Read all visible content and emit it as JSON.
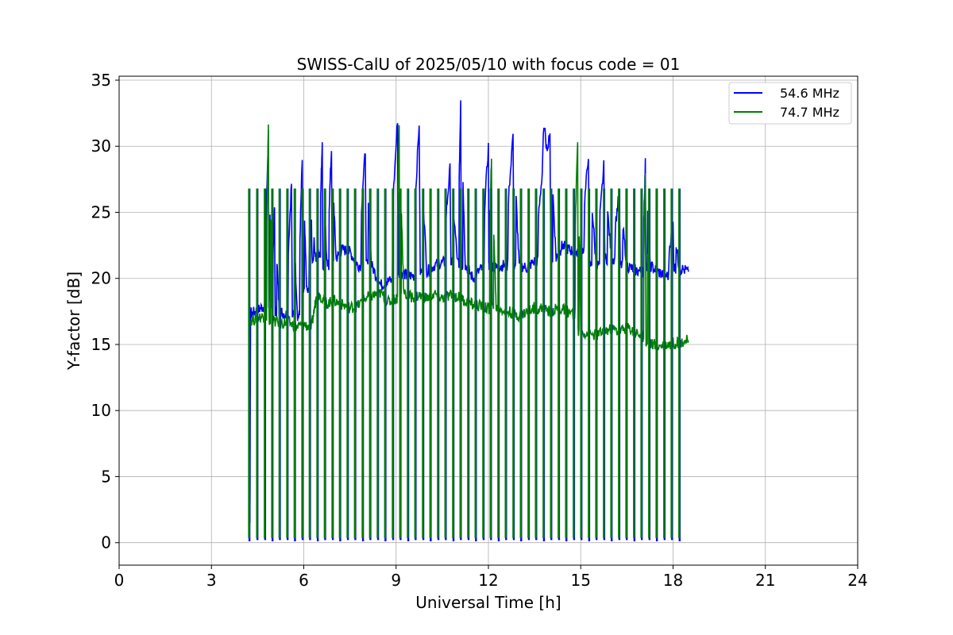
{
  "chart_data": {
    "type": "line",
    "title": "SWISS-CalU of 2025/05/10 with focus code = 01",
    "xlabel": "Universal Time [h]",
    "ylabel": "Y-factor [dB]",
    "xlim": [
      0,
      24
    ],
    "ylim": [
      -1.7,
      35.3
    ],
    "xticks": [
      0,
      3,
      6,
      9,
      12,
      15,
      18,
      21,
      24
    ],
    "yticks": [
      0,
      5,
      10,
      15,
      20,
      25,
      30,
      35
    ],
    "grid": true,
    "legend_position": "upper right",
    "series": [
      {
        "name": "54.6 MHz",
        "color": "#0000ff",
        "x": [
          4.25,
          4.27,
          4.3,
          4.5,
          4.7,
          4.85,
          4.95,
          5.05,
          5.2,
          5.4,
          5.6,
          5.8,
          5.95,
          6.1,
          6.25,
          6.4,
          6.5,
          6.6,
          6.75,
          6.9,
          7.05,
          7.25,
          7.5,
          7.75,
          8.0,
          8.2,
          8.5,
          8.75,
          9.05,
          9.1,
          9.3,
          9.5,
          9.75,
          10.0,
          10.25,
          10.5,
          10.75,
          11.0,
          11.1,
          11.25,
          11.5,
          11.75,
          12.0,
          12.1,
          12.25,
          12.5,
          12.8,
          13.0,
          13.25,
          13.5,
          13.75,
          14.0,
          14.2,
          14.4,
          14.6,
          14.8,
          15.0,
          15.25,
          15.5,
          15.75,
          16.0,
          16.25,
          16.5,
          16.75,
          17.0,
          17.1,
          17.25,
          17.5,
          17.75,
          18.0,
          18.2,
          18.5
        ],
        "y": [
          1.5,
          17.5,
          17.3,
          17.6,
          17.9,
          31.0,
          18.0,
          25.3,
          17.5,
          17.3,
          27.2,
          17.2,
          29.0,
          19.0,
          24.3,
          21.5,
          22.0,
          30.4,
          21.0,
          29.8,
          21.5,
          22.2,
          22.0,
          21.0,
          29.7,
          21.0,
          19.5,
          19.8,
          32.1,
          20.5,
          20.3,
          20.2,
          31.8,
          20.5,
          21.0,
          21.2,
          28.3,
          21.2,
          33.6,
          21.0,
          20.0,
          20.7,
          30.0,
          21.0,
          20.8,
          21.0,
          31.0,
          21.0,
          20.8,
          21.3,
          28.0,
          31.0,
          21.5,
          22.5,
          22.2,
          22.0,
          22.2,
          29.4,
          21.0,
          28.5,
          21.5,
          26.5,
          21.0,
          20.6,
          20.5,
          28.7,
          21.0,
          20.5,
          20.2,
          24.2,
          20.8,
          20.5
        ]
      },
      {
        "name": "74.7 MHz",
        "color": "#008000",
        "x": [
          4.25,
          4.5,
          4.75,
          4.85,
          5.0,
          5.25,
          5.5,
          5.75,
          6.0,
          6.25,
          6.4,
          6.5,
          6.75,
          7.0,
          7.25,
          7.5,
          7.75,
          8.0,
          8.25,
          8.5,
          8.75,
          9.0,
          9.1,
          9.25,
          9.5,
          9.75,
          10.0,
          10.25,
          10.5,
          10.75,
          11.0,
          11.25,
          11.5,
          11.75,
          12.0,
          12.1,
          12.25,
          12.5,
          12.75,
          13.0,
          13.25,
          13.5,
          13.75,
          14.0,
          14.25,
          14.5,
          14.75,
          14.9,
          15.0,
          15.25,
          15.5,
          15.75,
          16.0,
          16.25,
          16.5,
          16.75,
          17.0,
          17.1,
          17.25,
          17.5,
          17.75,
          18.0,
          18.25,
          18.5
        ],
        "y": [
          16.8,
          17.0,
          17.2,
          31.4,
          16.8,
          16.6,
          16.7,
          16.3,
          16.5,
          16.3,
          18.5,
          18.8,
          18.1,
          18.3,
          18.0,
          17.8,
          17.9,
          18.5,
          18.7,
          18.9,
          18.2,
          18.5,
          31.5,
          18.8,
          18.6,
          18.7,
          18.5,
          18.8,
          18.5,
          18.7,
          18.6,
          18.3,
          18.0,
          17.9,
          17.7,
          29.5,
          17.8,
          17.6,
          17.4,
          17.2,
          17.5,
          17.8,
          17.7,
          17.5,
          17.7,
          17.6,
          17.3,
          30.7,
          16.0,
          15.8,
          15.7,
          16.0,
          16.2,
          16.0,
          16.3,
          16.0,
          15.6,
          28.3,
          15.1,
          14.9,
          15.0,
          15.1,
          15.2,
          15.3
        ]
      }
    ],
    "calibration_spikes_x": [
      4.22,
      4.48,
      4.73,
      4.97,
      5.21,
      5.46,
      5.7,
      5.95,
      6.19,
      6.44,
      6.68,
      6.93,
      7.17,
      7.42,
      7.66,
      7.91,
      8.15,
      8.4,
      8.64,
      8.89,
      9.13,
      9.38,
      9.62,
      9.87,
      10.11,
      10.36,
      10.6,
      10.85,
      11.09,
      11.34,
      11.58,
      11.83,
      12.07,
      12.32,
      12.56,
      12.81,
      13.05,
      13.3,
      13.54,
      13.79,
      14.03,
      14.28,
      14.52,
      14.77,
      15.01,
      15.26,
      15.5,
      15.75,
      15.99,
      16.24,
      16.48,
      16.73,
      16.97,
      17.22,
      17.46,
      17.71,
      17.95,
      18.2
    ],
    "spike_top": 26.8,
    "spike_bottom": 0.2
  }
}
